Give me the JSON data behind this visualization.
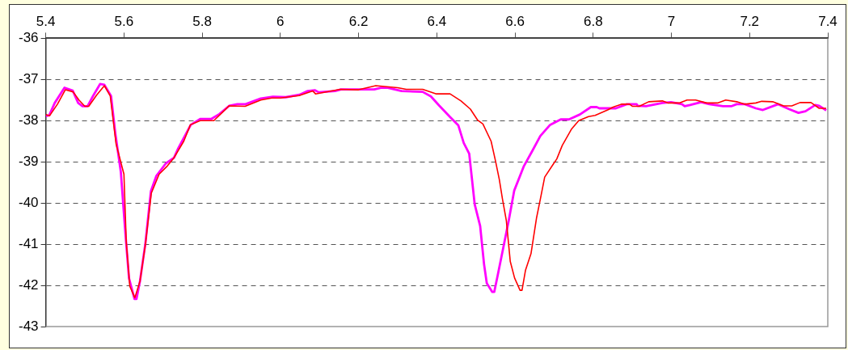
{
  "chart_data": {
    "type": "line",
    "xlim": [
      5.4,
      7.4
    ],
    "xticks": [
      5.4,
      5.6,
      5.8,
      6,
      6.2,
      6.4,
      6.6,
      6.8,
      7,
      7.2,
      7.4
    ],
    "ylim": [
      -43,
      -36
    ],
    "yticks": [
      -43,
      -42,
      -41,
      -40,
      -39,
      -38,
      -37,
      -36
    ],
    "grid": "y",
    "legend": false,
    "marker": "none",
    "line_style": "solid",
    "series": [
      {
        "color": "#ff0000",
        "x": [
          5.4,
          5.41,
          5.43,
          5.45,
          5.47,
          5.485,
          5.5,
          5.51,
          5.53,
          5.55,
          5.565,
          5.58,
          5.6,
          5.606,
          5.615,
          5.628,
          5.641,
          5.655,
          5.67,
          5.69,
          5.711,
          5.728,
          5.753,
          5.77,
          5.795,
          5.83,
          5.869,
          5.91,
          5.95,
          5.978,
          6.0,
          6.048,
          6.083,
          6.09,
          6.153,
          6.2,
          6.244,
          6.3,
          6.322,
          6.364,
          6.399,
          6.434,
          6.462,
          6.486,
          6.504,
          6.518,
          6.539,
          6.55,
          6.56,
          6.568,
          6.578,
          6.588,
          6.599,
          6.613,
          6.618,
          6.627,
          6.641,
          6.655,
          6.665,
          6.676,
          6.697,
          6.707,
          6.721,
          6.745,
          6.763,
          6.788,
          6.805,
          6.837,
          6.851,
          6.872,
          6.893,
          6.9,
          6.918,
          6.942,
          6.977,
          6.992,
          7.02,
          7.04,
          7.062,
          7.09,
          7.118,
          7.139,
          7.167,
          7.188,
          7.216,
          7.231,
          7.259,
          7.287,
          7.308,
          7.329,
          7.357,
          7.378,
          7.396
        ],
        "values": [
          -37.85,
          -37.88,
          -37.6,
          -37.25,
          -37.3,
          -37.5,
          -37.65,
          -37.65,
          -37.38,
          -37.15,
          -37.4,
          -38.57,
          -39.3,
          -40.95,
          -42.02,
          -42.3,
          -41.9,
          -41.0,
          -39.76,
          -39.3,
          -39.1,
          -38.9,
          -38.5,
          -38.1,
          -38.0,
          -38.0,
          -37.64,
          -37.65,
          -37.5,
          -37.45,
          -37.45,
          -37.39,
          -37.28,
          -37.35,
          -37.24,
          -37.25,
          -37.15,
          -37.2,
          -37.24,
          -37.24,
          -37.35,
          -37.35,
          -37.52,
          -37.72,
          -37.98,
          -38.08,
          -38.5,
          -38.97,
          -39.43,
          -39.9,
          -40.43,
          -41.42,
          -41.82,
          -42.12,
          -42.12,
          -41.63,
          -41.23,
          -40.37,
          -39.9,
          -39.37,
          -39.07,
          -38.93,
          -38.6,
          -38.2,
          -38.0,
          -37.9,
          -37.87,
          -37.74,
          -37.67,
          -37.6,
          -37.6,
          -37.65,
          -37.65,
          -37.54,
          -37.52,
          -37.57,
          -37.57,
          -37.5,
          -37.5,
          -37.57,
          -37.57,
          -37.5,
          -37.54,
          -37.6,
          -37.57,
          -37.53,
          -37.54,
          -37.64,
          -37.64,
          -37.56,
          -37.56,
          -37.7,
          -37.7
        ]
      },
      {
        "color": "#ff00ff",
        "x": [
          5.4,
          5.409,
          5.423,
          5.448,
          5.469,
          5.483,
          5.494,
          5.507,
          5.521,
          5.539,
          5.55,
          5.567,
          5.578,
          5.592,
          5.604,
          5.613,
          5.627,
          5.632,
          5.641,
          5.655,
          5.669,
          5.683,
          5.707,
          5.728,
          5.739,
          5.771,
          5.795,
          5.823,
          5.844,
          5.869,
          5.89,
          5.911,
          5.95,
          5.981,
          6.014,
          6.049,
          6.07,
          6.088,
          6.098,
          6.14,
          6.155,
          6.197,
          6.24,
          6.257,
          6.275,
          6.31,
          6.364,
          6.385,
          6.406,
          6.434,
          6.455,
          6.469,
          6.483,
          6.497,
          6.511,
          6.521,
          6.528,
          6.542,
          6.547,
          6.556,
          6.57,
          6.584,
          6.598,
          6.623,
          6.644,
          6.665,
          6.69,
          6.717,
          6.738,
          6.766,
          6.794,
          6.809,
          6.816,
          6.858,
          6.886,
          6.911,
          6.914,
          6.935,
          6.977,
          6.999,
          7.027,
          7.034,
          7.048,
          7.076,
          7.097,
          7.132,
          7.153,
          7.167,
          7.188,
          7.216,
          7.234,
          7.273,
          7.301,
          7.325,
          7.343,
          7.368,
          7.378,
          7.396
        ],
        "values": [
          -37.89,
          -37.87,
          -37.57,
          -37.2,
          -37.27,
          -37.57,
          -37.65,
          -37.65,
          -37.4,
          -37.11,
          -37.13,
          -37.4,
          -38.31,
          -39.24,
          -40.77,
          -41.83,
          -42.33,
          -42.33,
          -41.9,
          -40.97,
          -39.71,
          -39.34,
          -39.04,
          -38.9,
          -38.67,
          -38.1,
          -37.96,
          -37.96,
          -37.84,
          -37.64,
          -37.6,
          -37.6,
          -37.46,
          -37.42,
          -37.43,
          -37.37,
          -37.28,
          -37.26,
          -37.31,
          -37.28,
          -37.24,
          -37.24,
          -37.24,
          -37.2,
          -37.2,
          -37.28,
          -37.3,
          -37.41,
          -37.63,
          -37.91,
          -38.11,
          -38.54,
          -38.8,
          -40.03,
          -40.56,
          -41.49,
          -41.95,
          -42.16,
          -42.16,
          -41.75,
          -41.09,
          -40.43,
          -39.7,
          -39.1,
          -38.74,
          -38.37,
          -38.1,
          -37.97,
          -37.97,
          -37.85,
          -37.67,
          -37.67,
          -37.7,
          -37.7,
          -37.6,
          -37.6,
          -37.64,
          -37.65,
          -37.57,
          -37.55,
          -37.6,
          -37.65,
          -37.62,
          -37.55,
          -37.6,
          -37.65,
          -37.65,
          -37.6,
          -37.6,
          -37.7,
          -37.74,
          -37.6,
          -37.72,
          -37.81,
          -37.77,
          -37.62,
          -37.64,
          -37.75
        ]
      }
    ]
  }
}
